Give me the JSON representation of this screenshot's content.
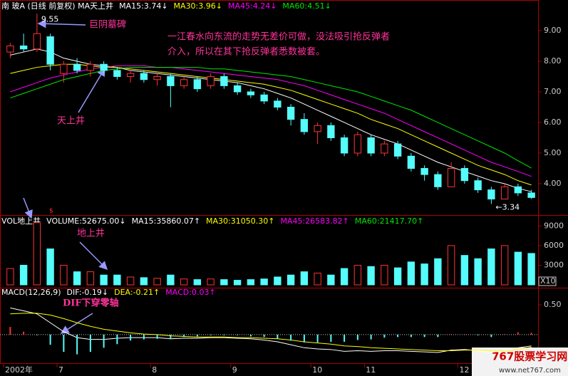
{
  "chart_data": [
    {
      "type": "candlestick",
      "title": "南  玻A (日线 前复权) MA天上井",
      "categories": [
        "2002年",
        null,
        null,
        null,
        "7",
        null,
        null,
        null,
        null,
        null,
        null,
        "8",
        null,
        null,
        null,
        null,
        null,
        "9",
        null,
        null,
        null,
        null,
        null,
        "10",
        null,
        null,
        null,
        "11",
        null,
        null,
        null,
        null,
        null,
        null,
        "12",
        null,
        null,
        null,
        null,
        null
      ],
      "ohlc": [
        [
          8.3,
          8.6,
          8.1,
          8.5
        ],
        [
          8.5,
          8.9,
          8.3,
          8.4
        ],
        [
          8.4,
          9.55,
          8.3,
          8.9
        ],
        [
          8.8,
          8.9,
          7.7,
          7.9
        ],
        [
          7.6,
          8.0,
          7.3,
          7.9
        ],
        [
          7.9,
          8.1,
          7.6,
          7.7
        ],
        [
          7.7,
          8.0,
          7.5,
          7.9
        ],
        [
          7.9,
          8.0,
          7.6,
          7.7
        ],
        [
          7.7,
          7.8,
          7.4,
          7.5
        ],
        [
          7.5,
          7.7,
          7.3,
          7.6
        ],
        [
          7.6,
          7.7,
          7.3,
          7.4
        ],
        [
          7.4,
          7.6,
          7.2,
          7.5
        ],
        [
          7.5,
          7.6,
          6.5,
          7.2
        ],
        [
          7.2,
          7.5,
          7.1,
          7.4
        ],
        [
          7.4,
          7.5,
          7.0,
          7.1
        ],
        [
          7.2,
          7.6,
          7.1,
          7.5
        ],
        [
          7.5,
          7.6,
          7.1,
          7.2
        ],
        [
          7.2,
          7.3,
          6.9,
          7.0
        ],
        [
          7.0,
          7.1,
          6.8,
          6.9
        ],
        [
          6.9,
          7.0,
          6.6,
          6.7
        ],
        [
          6.7,
          6.8,
          6.4,
          6.5
        ],
        [
          6.5,
          6.6,
          5.9,
          6.1
        ],
        [
          6.1,
          6.3,
          5.6,
          5.7
        ],
        [
          5.7,
          6.0,
          5.3,
          5.9
        ],
        [
          5.9,
          6.0,
          5.4,
          5.5
        ],
        [
          5.5,
          5.6,
          4.9,
          5.0
        ],
        [
          5.0,
          5.7,
          4.9,
          5.6
        ],
        [
          5.5,
          5.6,
          4.9,
          5.0
        ],
        [
          5.0,
          5.4,
          4.9,
          5.3
        ],
        [
          5.3,
          5.4,
          4.8,
          4.9
        ],
        [
          4.9,
          5.0,
          4.4,
          4.5
        ],
        [
          4.5,
          4.6,
          4.1,
          4.3
        ],
        [
          4.3,
          4.4,
          3.8,
          3.9
        ],
        [
          3.9,
          4.7,
          3.9,
          4.5
        ],
        [
          4.5,
          4.6,
          4.0,
          4.1
        ],
        [
          4.1,
          4.2,
          3.7,
          3.8
        ],
        [
          3.8,
          3.9,
          3.34,
          3.5
        ],
        [
          3.5,
          4.0,
          3.5,
          3.9
        ],
        [
          3.9,
          4.0,
          3.6,
          3.7
        ],
        [
          3.7,
          3.8,
          3.5,
          3.55
        ]
      ],
      "up_color": "#ff3232",
      "down_color": "#54fcfc",
      "series": [
        {
          "name": "MA15:3.74↓",
          "color": "#ffffff",
          "values": [
            8.2,
            8.3,
            8.4,
            8.3,
            8.1,
            8.0,
            7.9,
            7.85,
            7.8,
            7.7,
            7.65,
            7.6,
            7.55,
            7.5,
            7.45,
            7.4,
            7.35,
            7.3,
            7.2,
            7.1,
            6.95,
            6.8,
            6.6,
            6.4,
            6.2,
            6.0,
            5.8,
            5.6,
            5.45,
            5.3,
            5.1,
            4.9,
            4.7,
            4.55,
            4.4,
            4.25,
            4.1,
            4.0,
            3.85,
            3.74
          ]
        },
        {
          "name": "MA30:3.96↓",
          "color": "#ffff00",
          "values": [
            7.6,
            7.7,
            7.8,
            7.85,
            7.9,
            7.9,
            7.85,
            7.8,
            7.8,
            7.75,
            7.7,
            7.65,
            7.6,
            7.55,
            7.5,
            7.45,
            7.4,
            7.35,
            7.3,
            7.25,
            7.15,
            7.05,
            6.9,
            6.75,
            6.6,
            6.45,
            6.3,
            6.1,
            5.95,
            5.8,
            5.6,
            5.4,
            5.2,
            5.0,
            4.8,
            4.6,
            4.45,
            4.3,
            4.1,
            3.96
          ]
        },
        {
          "name": "MA45:4.24↓",
          "color": "#ff00ff",
          "values": [
            7.0,
            7.15,
            7.3,
            7.45,
            7.55,
            7.65,
            7.75,
            7.8,
            7.85,
            7.85,
            7.85,
            7.8,
            7.8,
            7.75,
            7.7,
            7.65,
            7.6,
            7.55,
            7.5,
            7.45,
            7.4,
            7.3,
            7.2,
            7.05,
            6.9,
            6.75,
            6.6,
            6.45,
            6.3,
            6.1,
            5.9,
            5.7,
            5.5,
            5.3,
            5.1,
            4.9,
            4.7,
            4.55,
            4.4,
            4.24
          ]
        },
        {
          "name": "MA60:4.51↓",
          "color": "#00e600",
          "values": [
            6.8,
            6.95,
            7.1,
            7.25,
            7.4,
            7.5,
            7.6,
            7.7,
            7.75,
            7.8,
            7.8,
            7.8,
            7.8,
            7.8,
            7.8,
            7.75,
            7.75,
            7.7,
            7.65,
            7.6,
            7.55,
            7.5,
            7.4,
            7.3,
            7.2,
            7.1,
            7.0,
            6.85,
            6.7,
            6.55,
            6.4,
            6.2,
            6.0,
            5.8,
            5.6,
            5.4,
            5.2,
            5.0,
            4.75,
            4.51
          ]
        }
      ],
      "high_label": "9.55",
      "low_label": "←3.34",
      "marker": "$",
      "ylim": [
        3.0,
        9.65
      ],
      "yticks": [
        {
          "value": 9,
          "label": "9.00"
        },
        {
          "value": 8,
          "label": "8.00"
        },
        {
          "value": 7,
          "label": "7.00"
        },
        {
          "value": 6,
          "label": "6.00"
        },
        {
          "value": 5,
          "label": "5.00"
        },
        {
          "value": 4,
          "label": "4.00"
        }
      ]
    },
    {
      "type": "volume",
      "title": "VOL地上井",
      "series": [
        {
          "name": "VOLUME:52675.00↓",
          "color": "#ffffff",
          "values": [
            2500,
            3000,
            9500,
            5500,
            3000,
            2000,
            2000,
            1500,
            1500,
            1200,
            1100,
            1000,
            1500,
            900,
            800,
            900,
            800,
            700,
            800,
            900,
            1200,
            1500,
            2000,
            1800,
            1500,
            2500,
            3000,
            2800,
            3000,
            2600,
            3500,
            3200,
            4000,
            6000,
            4500,
            4000,
            5500,
            6000,
            5000,
            4800
          ]
        }
      ],
      "indicators": [
        {
          "text": "MA15:35860.07↑",
          "color": "#ffffff"
        },
        {
          "text": "MA30:31050.30↑",
          "color": "#ffff00"
        },
        {
          "text": "MA45:26583.82↑",
          "color": "#ff00ff"
        },
        {
          "text": "MA60:21417.70↑",
          "color": "#00e600"
        }
      ],
      "unit_label": "X10",
      "ylim": [
        0,
        9800
      ],
      "yticks": [
        9000,
        6000,
        3000
      ]
    },
    {
      "type": "macd",
      "title": "MACD(12,26,9)",
      "series": [
        {
          "name": "DIF:-0.19↓",
          "color": "#ffffff",
          "kind": "line",
          "values": [
            0.45,
            0.4,
            0.35,
            0.2,
            0.05,
            -0.05,
            -0.08,
            -0.08,
            -0.06,
            -0.05,
            -0.05,
            -0.05,
            -0.07,
            -0.06,
            -0.06,
            -0.05,
            -0.05,
            -0.06,
            -0.07,
            -0.09,
            -0.12,
            -0.17,
            -0.22,
            -0.24,
            -0.25,
            -0.28,
            -0.27,
            -0.28,
            -0.27,
            -0.27,
            -0.28,
            -0.29,
            -0.3,
            -0.26,
            -0.25,
            -0.27,
            -0.3,
            -0.26,
            -0.22,
            -0.19
          ]
        },
        {
          "name": "DEA:-0.21↑",
          "color": "#ffff00",
          "kind": "line",
          "values": [
            0.35,
            0.36,
            0.36,
            0.33,
            0.27,
            0.2,
            0.14,
            0.09,
            0.06,
            0.03,
            0.01,
            0.0,
            -0.02,
            -0.03,
            -0.04,
            -0.04,
            -0.04,
            -0.05,
            -0.05,
            -0.06,
            -0.07,
            -0.09,
            -0.12,
            -0.14,
            -0.16,
            -0.19,
            -0.2,
            -0.22,
            -0.23,
            -0.24,
            -0.25,
            -0.26,
            -0.27,
            -0.27,
            -0.26,
            -0.26,
            -0.27,
            -0.27,
            -0.25,
            -0.21
          ]
        },
        {
          "name": "MACD:0.03↑",
          "color": "#ff00ff",
          "kind": "bar",
          "values": [
            0.13,
            0.05,
            -0.01,
            -0.17,
            -0.29,
            -0.33,
            -0.29,
            -0.22,
            -0.16,
            -0.1,
            -0.08,
            -0.07,
            -0.07,
            -0.04,
            -0.03,
            -0.01,
            -0.01,
            -0.01,
            -0.03,
            -0.04,
            -0.07,
            -0.1,
            -0.13,
            -0.13,
            -0.12,
            -0.12,
            -0.09,
            -0.08,
            -0.05,
            -0.04,
            -0.04,
            -0.04,
            -0.04,
            0.01,
            0.01,
            -0.01,
            -0.04,
            0.01,
            0.04,
            0.03
          ]
        }
      ],
      "up_color": "#ff3232",
      "down_color": "#54fcfc",
      "ylim": [
        -0.36,
        0.55
      ],
      "yticks": [
        {
          "value": 0.5,
          "label": "0.50"
        }
      ]
    }
  ],
  "annotations": {
    "tombstone": "巨阴墓碑",
    "comment_line1": "一江春水向东流的走势无差价可做，没法吸引抢反弹者",
    "comment_line2": "介入，所以在其下抢反弹者悉数被套。",
    "sky_well": "天上井",
    "ground_well": "地上井",
    "dif_cross": "DIF下穿零轴"
  },
  "watermark": {
    "name": "767股票学习网",
    "url": "www.net767.com"
  }
}
